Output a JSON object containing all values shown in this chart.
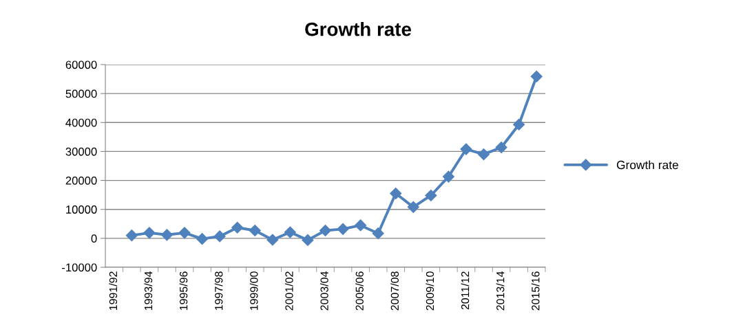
{
  "chart_data": {
    "type": "line",
    "title": "Growth rate",
    "categories": [
      "1991/92",
      null,
      "1993/94",
      null,
      "1995/96",
      null,
      "1997/98",
      null,
      "1999/00",
      null,
      "2001/02",
      null,
      "2003/04",
      null,
      "2005/06",
      null,
      "2007/08",
      null,
      "2009/10",
      null,
      "2011/12",
      null,
      "2013/14",
      null,
      "2015/16"
    ],
    "series": [
      {
        "name": "Growth rate",
        "color": "#4f81bd",
        "values": [
          null,
          1000,
          1900,
          1200,
          1900,
          -200,
          700,
          3700,
          2700,
          -500,
          2100,
          -600,
          2700,
          3200,
          4500,
          1700,
          15500,
          10800,
          14800,
          21300,
          30800,
          29000,
          31400,
          39300,
          55900
        ]
      }
    ],
    "ylim": [
      -10000,
      60000
    ],
    "yticks": [
      -10000,
      0,
      10000,
      20000,
      30000,
      40000,
      50000,
      60000
    ],
    "grid": "y",
    "legend": "right",
    "marker": "diamond",
    "line_style": "solid"
  }
}
